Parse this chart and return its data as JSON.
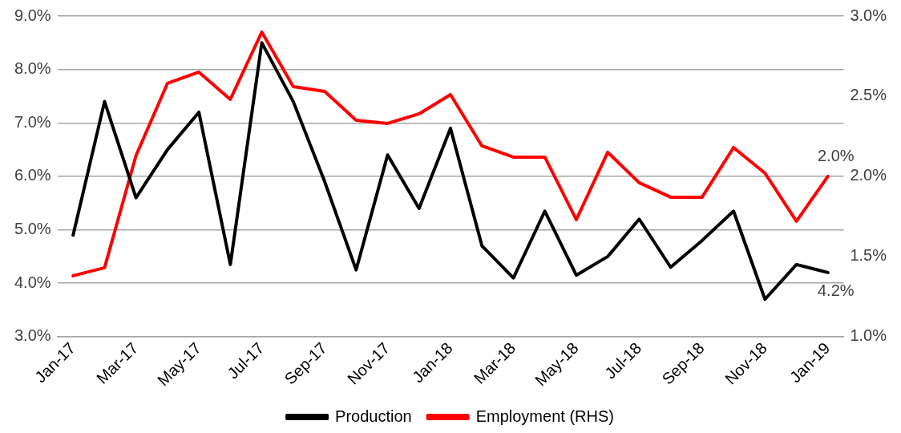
{
  "chart_data": {
    "type": "line",
    "categories": [
      "Jan-17",
      null,
      "Mar-17",
      null,
      "May-17",
      null,
      "Jul-17",
      null,
      "Sep-17",
      null,
      "Nov-17",
      null,
      "Jan-18",
      null,
      "Mar-18",
      null,
      "May-18",
      null,
      "Jul-18",
      null,
      "Sep-18",
      null,
      "Nov-18",
      null,
      "Jan-19"
    ],
    "series": [
      {
        "name": "Production",
        "color": "#000000",
        "values": [
          4.9,
          7.4,
          5.6,
          6.5,
          7.2,
          4.35,
          8.5,
          7.4,
          5.9,
          4.25,
          6.4,
          5.4,
          6.9,
          4.7,
          4.1,
          5.35,
          4.15,
          4.5,
          5.2,
          4.3,
          4.8,
          5.35,
          3.7,
          4.35,
          4.2
        ],
        "value_labels": [
          null,
          null,
          null,
          null,
          null,
          null,
          null,
          null,
          null,
          null,
          null,
          null,
          null,
          null,
          null,
          null,
          null,
          null,
          null,
          null,
          null,
          null,
          null,
          null,
          "4.2%"
        ]
      },
      {
        "name": "Employment (RHS)",
        "color": "#ff0000",
        "axis": "y2",
        "values": [
          1.38,
          1.43,
          2.13,
          2.58,
          2.65,
          2.48,
          2.9,
          2.56,
          2.53,
          2.35,
          2.33,
          2.39,
          2.51,
          2.19,
          2.12,
          2.12,
          1.73,
          2.15,
          1.96,
          1.87,
          1.87,
          2.18,
          2.02,
          1.72,
          2.0
        ],
        "value_labels": [
          null,
          null,
          null,
          null,
          null,
          null,
          null,
          null,
          null,
          null,
          null,
          null,
          null,
          null,
          null,
          null,
          null,
          null,
          null,
          null,
          null,
          null,
          null,
          null,
          "2.0%"
        ]
      }
    ],
    "ylim": [
      3,
      9
    ],
    "yticks": [
      {
        "value": 3,
        "label": "3.0%"
      },
      {
        "value": 4,
        "label": "4.0%"
      },
      {
        "value": 5,
        "label": "5.0%"
      },
      {
        "value": 6,
        "label": "6.0%"
      },
      {
        "value": 7,
        "label": "7.0%"
      },
      {
        "value": 8,
        "label": "8.0%"
      },
      {
        "value": 9,
        "label": "9.0%"
      }
    ],
    "y2lim": [
      1,
      3
    ],
    "y2ticks": [
      {
        "value": 1,
        "label": "1.0%"
      },
      {
        "value": 1.5,
        "label": "1.5%"
      },
      {
        "value": 2,
        "label": "2.0%"
      },
      {
        "value": 2.5,
        "label": "2.5%"
      },
      {
        "value": 3,
        "label": "3.0%"
      }
    ],
    "grid": "y",
    "legend": "bottom",
    "marker": "none",
    "line_style": "solid"
  }
}
